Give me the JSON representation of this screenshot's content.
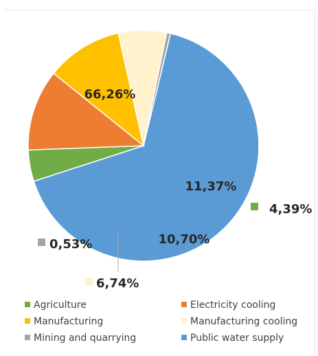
{
  "chart_data": {
    "type": "pie",
    "title": "",
    "slices": [
      {
        "name": "Public water supply",
        "value": 66.26,
        "label": "66,26%",
        "color": "#5B9BD5"
      },
      {
        "name": "Agriculture",
        "value": 4.39,
        "label": "4,39%",
        "color": "#70AD47"
      },
      {
        "name": "Electricity cooling",
        "value": 11.37,
        "label": "11,37%",
        "color": "#ED7D31"
      },
      {
        "name": "Manufacturing",
        "value": 10.7,
        "label": "10,70%",
        "color": "#FFC000"
      },
      {
        "name": "Manufacturing cooling",
        "value": 6.74,
        "label": "6,74%",
        "color": "#FFF2CC"
      },
      {
        "name": "Mining and quarrying",
        "value": 0.53,
        "label": "0,53%",
        "color": "#A5A5A5"
      }
    ],
    "legend": {
      "placement": "bottom",
      "entries": [
        {
          "name": "Agriculture",
          "color": "#70AD47"
        },
        {
          "name": "Electricity cooling",
          "color": "#ED7D31"
        },
        {
          "name": "Manufacturing",
          "color": "#FFC000"
        },
        {
          "name": "Manufacturing cooling",
          "color": "#FFF2CC"
        },
        {
          "name": "Mining and quarrying",
          "color": "#A5A5A5"
        },
        {
          "name": "Public water supply",
          "color": "#5B9BD5"
        }
      ]
    }
  }
}
